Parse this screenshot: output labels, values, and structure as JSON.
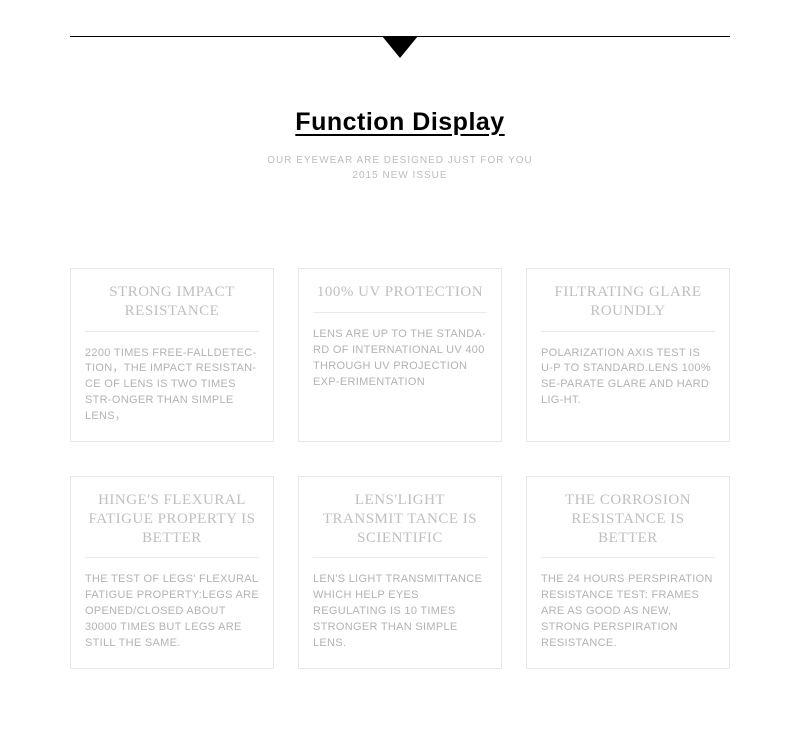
{
  "header": {
    "title": "Function Display",
    "subtitle1": "OUR EYEWEAR ARE DESIGNED JUST FOR YOU",
    "subtitle2": "2015 NEW ISSUE"
  },
  "cards": [
    {
      "title": "STRONG IMPACT RESISTANCE",
      "body": "2200 TIMES FREE-FALLDETEC-TION，THE IMPACT RESISTAN-CE OF LENS IS TWO TIMES STR-ONGER THAN SIMPLE LENS，"
    },
    {
      "title": "100% UV PROTECTION",
      "body": "LENS ARE UP TO THE STANDA-RD OF INTERNATIONAL UV 400 THROUGH UV PROJECTION EXP-ERIMENTATION"
    },
    {
      "title": "FILTRATING GLARE ROUNDLY",
      "body": "POLARIZATION AXIS TEST IS U-P TO STANDARD.LENS 100% SE-PARATE GLARE AND HARD LIG-HT."
    },
    {
      "title": "HINGE'S FLEXURAL FATIGUE PROPERTY IS BETTER",
      "body": "THE TEST OF LEGS' FLEXURAL FATIGUE PROPERTY:LEGS ARE OPENED/CLOSED ABOUT 30000 TIMES BUT LEGS ARE STILL THE SAME."
    },
    {
      "title": "LENS'LIGHT TRANSMIT TANCE IS SCIENTIFIC",
      "body": "LEN'S LIGHT TRANSMITTANCE WHICH HELP EYES REGULATING IS 10 TIMES STRONGER THAN SIMPLE LENS."
    },
    {
      "title": "THE CORROSION RESISTANCE IS BETTER",
      "body": "THE 24 HOURS PERSPIRATION RESISTANCE TEST: FRAMES ARE AS GOOD AS NEW, STRONG PERSPIRATION RESISTANCE."
    }
  ],
  "style": {
    "background": "#ffffff",
    "title_color": "#000000",
    "subtitle_color": "#bdbdbd",
    "card_border": "#e8e8e8",
    "card_title_color": "#bfbfbf",
    "card_body_color": "#b3b3b3",
    "line_color": "#000000"
  }
}
